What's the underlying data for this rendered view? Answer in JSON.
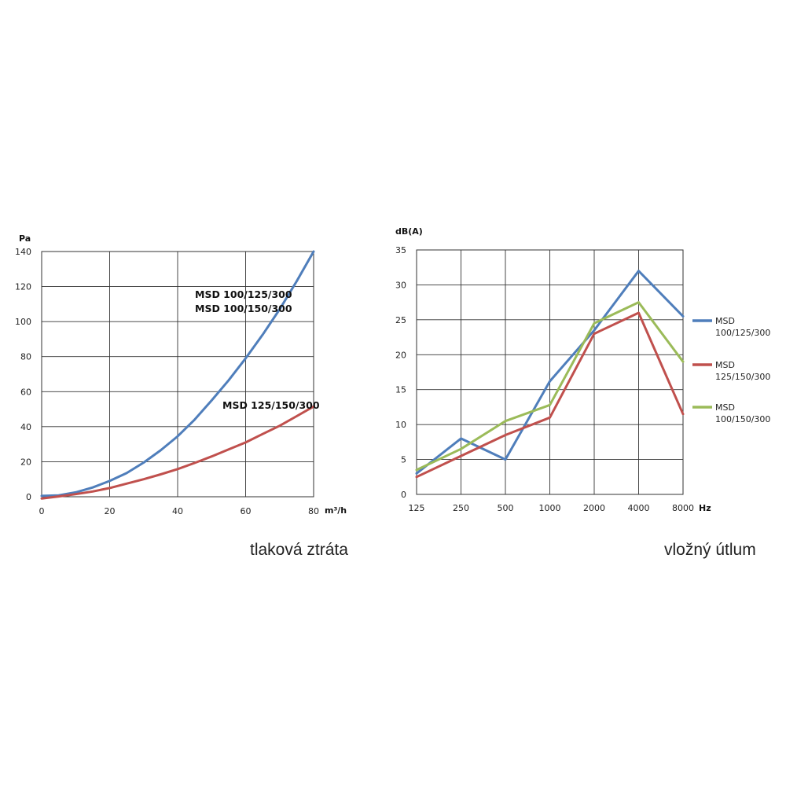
{
  "captions": {
    "left": "tlaková ztráta",
    "right": "vložný útlum"
  },
  "chart_data": [
    {
      "type": "line",
      "title": "",
      "xlabel": "m³/h",
      "ylabel": "Pa",
      "xlim": [
        0,
        80
      ],
      "ylim": [
        0,
        140
      ],
      "x_ticks": [
        "0",
        "20",
        "40",
        "60",
        "80"
      ],
      "y_ticks": [
        "0",
        "20",
        "40",
        "60",
        "80",
        "100",
        "120",
        "140"
      ],
      "grid": true,
      "annotations": [
        {
          "text": "MSD 100/125/300",
          "for_series": 0
        },
        {
          "text": "MSD 100/150/300",
          "for_series": 0
        },
        {
          "text": "MSD 125/150/300",
          "for_series": 1
        }
      ],
      "series": [
        {
          "color": "#4f7ebb",
          "x": [
            0,
            5,
            10,
            15,
            20,
            25,
            30,
            35,
            40,
            45,
            50,
            55,
            60,
            65,
            70,
            75,
            80
          ],
          "y": [
            0.5,
            0.8,
            2.5,
            5.3,
            9,
            13.5,
            19.5,
            26.5,
            34.5,
            44,
            55,
            66.5,
            79,
            92.5,
            107,
            123,
            140
          ]
        },
        {
          "color": "#c0504d",
          "x": [
            0,
            5,
            10,
            15,
            20,
            25,
            30,
            35,
            40,
            45,
            50,
            55,
            60,
            65,
            70,
            75,
            80
          ],
          "y": [
            -1,
            0.2,
            1.5,
            3,
            5,
            7.5,
            10,
            12.8,
            15.8,
            19.3,
            23,
            27,
            31,
            35.8,
            40.5,
            46,
            51.5
          ]
        }
      ]
    },
    {
      "type": "line",
      "title": "",
      "xlabel": "Hz",
      "ylabel": "dB(A)",
      "categories": [
        "125",
        "250",
        "500",
        "1000",
        "2000",
        "4000",
        "8000"
      ],
      "y_ticks": [
        "0",
        "5",
        "10",
        "15",
        "20",
        "25",
        "30",
        "35"
      ],
      "ylim": [
        0,
        35
      ],
      "grid": true,
      "legend": "right",
      "series": [
        {
          "name_lines": [
            "MSD",
            "100/125/300"
          ],
          "color": "#4f7ebb",
          "values": [
            3.0,
            8.0,
            5.0,
            16.2,
            23.5,
            32.0,
            25.5
          ]
        },
        {
          "name_lines": [
            "MSD",
            "125/150/300"
          ],
          "color": "#c0504d",
          "values": [
            2.5,
            5.5,
            8.5,
            11.0,
            23.0,
            26.0,
            11.5
          ]
        },
        {
          "name_lines": [
            "MSD",
            "100/150/300"
          ],
          "color": "#9bbb59",
          "values": [
            3.5,
            6.5,
            10.5,
            12.8,
            24.5,
            27.5,
            19.0
          ]
        }
      ]
    }
  ]
}
